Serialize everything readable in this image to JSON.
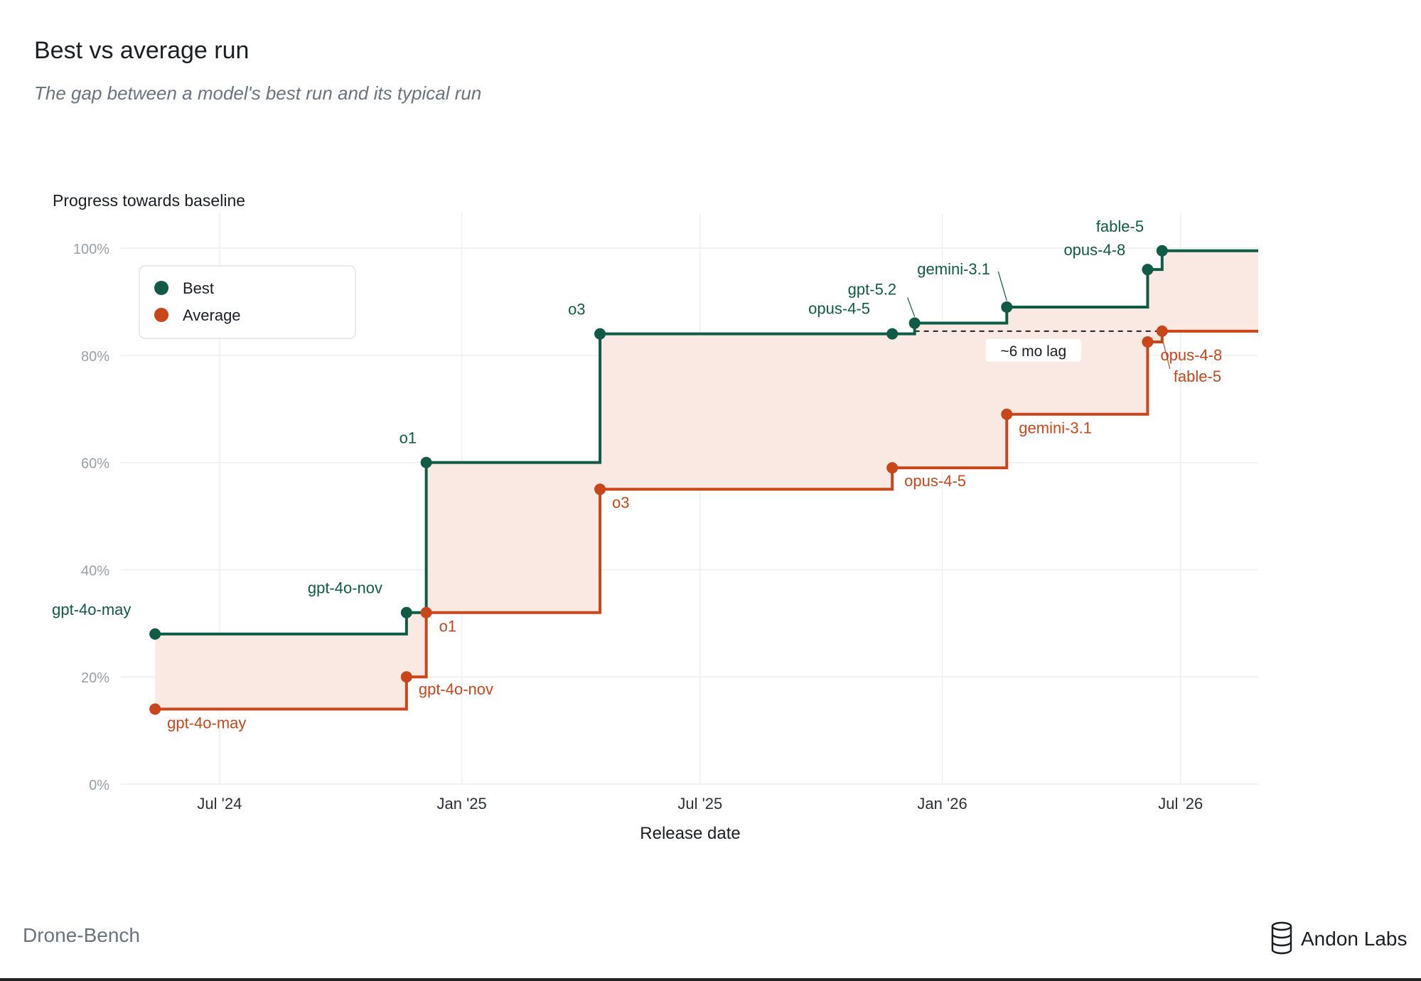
{
  "title": "Best vs average run",
  "subtitle": "The gap between a model's best run and its typical run",
  "footer": {
    "benchmark": "Drone-Bench",
    "brand": "Andon Labs"
  },
  "colors": {
    "best": "#0f5b45",
    "average": "#c8461a",
    "fill": "#f9e9e2",
    "grid": "#eeeeee",
    "axis_text": "#9aa0a8"
  },
  "chart_data": {
    "type": "line",
    "step": true,
    "ylabel": "Progress towards baseline",
    "xlabel": "Release date",
    "ylim": [
      0,
      100
    ],
    "xlim": [
      "2024-04-17",
      "2026-08-29"
    ],
    "y_ticks": [
      {
        "value": 0,
        "label": "0%"
      },
      {
        "value": 20,
        "label": "20%"
      },
      {
        "value": 40,
        "label": "40%"
      },
      {
        "value": 60,
        "label": "60%"
      },
      {
        "value": 80,
        "label": "80%"
      },
      {
        "value": 100,
        "label": "100%"
      }
    ],
    "x_ticks": [
      {
        "date": "2024-07-01",
        "label": "Jul '24"
      },
      {
        "date": "2025-01-01",
        "label": "Jan '25"
      },
      {
        "date": "2025-07-01",
        "label": "Jul '25"
      },
      {
        "date": "2026-01-01",
        "label": "Jan '26"
      },
      {
        "date": "2026-07-01",
        "label": "Jul '26"
      }
    ],
    "grid": true,
    "legend": {
      "position": "top-left",
      "entries": [
        "Best",
        "Average"
      ]
    },
    "series": [
      {
        "name": "Best",
        "color": "#0f5b45",
        "end_date": "2026-08-29",
        "points": [
          {
            "label": "gpt-4o-may",
            "date": "2024-05-13",
            "y": 28
          },
          {
            "label": "gpt-4o-nov",
            "date": "2024-11-20",
            "y": 32
          },
          {
            "label": "o1",
            "date": "2024-12-05",
            "y": 60
          },
          {
            "label": "o3",
            "date": "2025-04-16",
            "y": 84
          },
          {
            "label": "opus-4-5",
            "date": "2025-11-24",
            "y": 84
          },
          {
            "label": "gpt-5.2",
            "date": "2025-12-11",
            "y": 86
          },
          {
            "label": "gemini-3.1",
            "date": "2026-02-19",
            "y": 89
          },
          {
            "label": "opus-4-8",
            "date": "2026-06-06",
            "y": 96
          },
          {
            "label": "fable-5",
            "date": "2026-06-17",
            "y": 99.5
          }
        ]
      },
      {
        "name": "Average",
        "color": "#c8461a",
        "end_date": "2026-08-29",
        "points": [
          {
            "label": "gpt-4o-may",
            "date": "2024-05-13",
            "y": 14
          },
          {
            "label": "gpt-4o-nov",
            "date": "2024-11-20",
            "y": 20
          },
          {
            "label": "o1",
            "date": "2024-12-05",
            "y": 32
          },
          {
            "label": "o3",
            "date": "2025-04-16",
            "y": 55
          },
          {
            "label": "opus-4-5",
            "date": "2025-11-24",
            "y": 59
          },
          {
            "label": "gemini-3.1",
            "date": "2026-02-19",
            "y": 69
          },
          {
            "label": "opus-4-8",
            "date": "2026-06-06",
            "y": 82.5
          },
          {
            "label": "fable-5",
            "date": "2026-06-17",
            "y": 84.5
          }
        ]
      }
    ],
    "annotation": {
      "text": "~6 mo lag",
      "from_date": "2025-12-11",
      "to_date": "2026-06-17",
      "y": 84.5
    }
  }
}
